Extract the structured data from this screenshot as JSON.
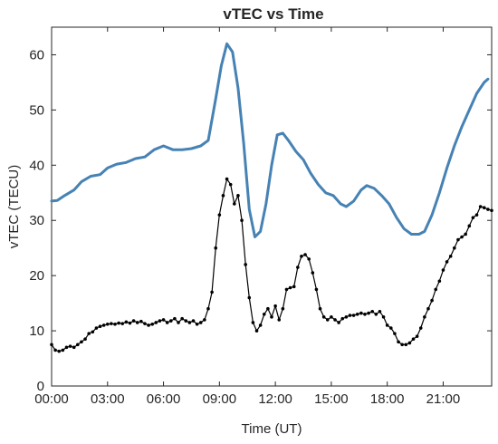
{
  "chart_data": {
    "type": "line",
    "title": "vTEC vs Time",
    "xlabel": "Time (UT)",
    "ylabel": "vTEC (TECU)",
    "xlim": [
      0,
      23.6
    ],
    "ylim": [
      0,
      65
    ],
    "grid": false,
    "legend": "none",
    "x_ticks": [
      {
        "value": 0,
        "label": "00:00"
      },
      {
        "value": 3,
        "label": "03:00"
      },
      {
        "value": 6,
        "label": "06:00"
      },
      {
        "value": 9,
        "label": "09:00"
      },
      {
        "value": 12,
        "label": "12:00"
      },
      {
        "value": 15,
        "label": "15:00"
      },
      {
        "value": 18,
        "label": "18:00"
      },
      {
        "value": 21,
        "label": "21:00"
      }
    ],
    "y_ticks": [
      {
        "value": 0,
        "label": "0"
      },
      {
        "value": 10,
        "label": "10"
      },
      {
        "value": 20,
        "label": "20"
      },
      {
        "value": 30,
        "label": "30"
      },
      {
        "value": 40,
        "label": "40"
      },
      {
        "value": 50,
        "label": "50"
      },
      {
        "value": 60,
        "label": "60"
      }
    ],
    "series": [
      {
        "color": "#4682b4",
        "style": "line",
        "points": [
          [
            0.0,
            33.5
          ],
          [
            0.3,
            33.6
          ],
          [
            0.7,
            34.5
          ],
          [
            1.2,
            35.5
          ],
          [
            1.6,
            37.0
          ],
          [
            2.1,
            38.0
          ],
          [
            2.6,
            38.3
          ],
          [
            3.0,
            39.5
          ],
          [
            3.5,
            40.2
          ],
          [
            4.0,
            40.5
          ],
          [
            4.5,
            41.2
          ],
          [
            5.0,
            41.5
          ],
          [
            5.5,
            42.8
          ],
          [
            6.0,
            43.5
          ],
          [
            6.5,
            42.8
          ],
          [
            7.0,
            42.8
          ],
          [
            7.5,
            43.0
          ],
          [
            8.0,
            43.5
          ],
          [
            8.4,
            44.5
          ],
          [
            8.8,
            52.0
          ],
          [
            9.1,
            58.0
          ],
          [
            9.4,
            62.0
          ],
          [
            9.7,
            60.5
          ],
          [
            10.0,
            54.0
          ],
          [
            10.3,
            44.0
          ],
          [
            10.6,
            32.0
          ],
          [
            10.9,
            27.0
          ],
          [
            11.2,
            28.0
          ],
          [
            11.5,
            33.0
          ],
          [
            11.8,
            40.0
          ],
          [
            12.1,
            45.5
          ],
          [
            12.4,
            45.8
          ],
          [
            12.7,
            44.5
          ],
          [
            13.1,
            42.5
          ],
          [
            13.5,
            41.0
          ],
          [
            13.9,
            38.5
          ],
          [
            14.3,
            36.5
          ],
          [
            14.7,
            35.0
          ],
          [
            15.1,
            34.5
          ],
          [
            15.5,
            33.0
          ],
          [
            15.8,
            32.5
          ],
          [
            16.2,
            33.5
          ],
          [
            16.6,
            35.5
          ],
          [
            16.9,
            36.3
          ],
          [
            17.3,
            35.8
          ],
          [
            17.7,
            34.5
          ],
          [
            18.1,
            33.0
          ],
          [
            18.5,
            30.5
          ],
          [
            18.9,
            28.5
          ],
          [
            19.3,
            27.5
          ],
          [
            19.7,
            27.5
          ],
          [
            20.0,
            28.0
          ],
          [
            20.4,
            31.0
          ],
          [
            20.8,
            35.0
          ],
          [
            21.2,
            39.5
          ],
          [
            21.6,
            43.5
          ],
          [
            22.0,
            47.0
          ],
          [
            22.4,
            50.0
          ],
          [
            22.8,
            53.0
          ],
          [
            23.2,
            55.0
          ],
          [
            23.4,
            55.6
          ]
        ]
      },
      {
        "color": "#000000",
        "style": "line-with-dots",
        "points": [
          [
            0.0,
            7.5
          ],
          [
            0.2,
            6.5
          ],
          [
            0.4,
            6.3
          ],
          [
            0.6,
            6.5
          ],
          [
            0.8,
            7.0
          ],
          [
            1.0,
            7.2
          ],
          [
            1.2,
            7.0
          ],
          [
            1.4,
            7.5
          ],
          [
            1.6,
            8.0
          ],
          [
            1.8,
            8.5
          ],
          [
            2.0,
            9.5
          ],
          [
            2.2,
            9.8
          ],
          [
            2.4,
            10.5
          ],
          [
            2.6,
            10.8
          ],
          [
            2.8,
            11.0
          ],
          [
            3.0,
            11.2
          ],
          [
            3.2,
            11.3
          ],
          [
            3.4,
            11.2
          ],
          [
            3.6,
            11.4
          ],
          [
            3.8,
            11.3
          ],
          [
            4.0,
            11.6
          ],
          [
            4.2,
            11.4
          ],
          [
            4.4,
            11.8
          ],
          [
            4.6,
            11.5
          ],
          [
            4.8,
            11.7
          ],
          [
            5.0,
            11.3
          ],
          [
            5.2,
            11.0
          ],
          [
            5.4,
            11.2
          ],
          [
            5.6,
            11.5
          ],
          [
            5.8,
            11.8
          ],
          [
            6.0,
            12.0
          ],
          [
            6.2,
            11.5
          ],
          [
            6.4,
            11.8
          ],
          [
            6.6,
            12.2
          ],
          [
            6.8,
            11.5
          ],
          [
            7.0,
            12.2
          ],
          [
            7.2,
            11.8
          ],
          [
            7.4,
            11.5
          ],
          [
            7.6,
            11.8
          ],
          [
            7.8,
            11.2
          ],
          [
            8.0,
            11.5
          ],
          [
            8.2,
            12.0
          ],
          [
            8.4,
            14.0
          ],
          [
            8.6,
            17.0
          ],
          [
            8.8,
            25.0
          ],
          [
            9.0,
            31.0
          ],
          [
            9.2,
            34.5
          ],
          [
            9.4,
            37.5
          ],
          [
            9.6,
            36.5
          ],
          [
            9.8,
            33.0
          ],
          [
            10.0,
            34.5
          ],
          [
            10.2,
            30.0
          ],
          [
            10.4,
            22.0
          ],
          [
            10.6,
            16.0
          ],
          [
            10.8,
            11.5
          ],
          [
            11.0,
            10.0
          ],
          [
            11.2,
            11.0
          ],
          [
            11.4,
            13.0
          ],
          [
            11.6,
            14.0
          ],
          [
            11.8,
            12.5
          ],
          [
            12.0,
            14.5
          ],
          [
            12.2,
            12.0
          ],
          [
            12.4,
            14.0
          ],
          [
            12.6,
            17.5
          ],
          [
            12.8,
            17.8
          ],
          [
            13.0,
            18.0
          ],
          [
            13.2,
            21.5
          ],
          [
            13.4,
            23.5
          ],
          [
            13.6,
            23.8
          ],
          [
            13.8,
            23.0
          ],
          [
            14.0,
            20.5
          ],
          [
            14.2,
            17.5
          ],
          [
            14.4,
            14.0
          ],
          [
            14.6,
            12.5
          ],
          [
            14.8,
            12.0
          ],
          [
            15.0,
            12.5
          ],
          [
            15.2,
            12.0
          ],
          [
            15.4,
            11.5
          ],
          [
            15.6,
            12.2
          ],
          [
            15.8,
            12.5
          ],
          [
            16.0,
            12.8
          ],
          [
            16.2,
            12.8
          ],
          [
            16.4,
            13.0
          ],
          [
            16.6,
            13.2
          ],
          [
            16.8,
            13.0
          ],
          [
            17.0,
            13.2
          ],
          [
            17.2,
            13.5
          ],
          [
            17.4,
            13.0
          ],
          [
            17.6,
            13.5
          ],
          [
            17.8,
            12.5
          ],
          [
            18.0,
            11.0
          ],
          [
            18.2,
            10.5
          ],
          [
            18.4,
            9.5
          ],
          [
            18.6,
            8.0
          ],
          [
            18.8,
            7.5
          ],
          [
            19.0,
            7.5
          ],
          [
            19.2,
            7.8
          ],
          [
            19.4,
            8.5
          ],
          [
            19.6,
            9.0
          ],
          [
            19.8,
            10.5
          ],
          [
            20.0,
            12.5
          ],
          [
            20.2,
            14.0
          ],
          [
            20.4,
            15.5
          ],
          [
            20.6,
            17.5
          ],
          [
            20.8,
            19.0
          ],
          [
            21.0,
            21.0
          ],
          [
            21.2,
            22.5
          ],
          [
            21.4,
            23.5
          ],
          [
            21.6,
            25.0
          ],
          [
            21.8,
            26.5
          ],
          [
            22.0,
            27.0
          ],
          [
            22.2,
            27.5
          ],
          [
            22.4,
            29.0
          ],
          [
            22.6,
            30.5
          ],
          [
            22.8,
            31.0
          ],
          [
            23.0,
            32.5
          ],
          [
            23.2,
            32.3
          ],
          [
            23.4,
            32.0
          ],
          [
            23.6,
            31.8
          ]
        ]
      }
    ]
  }
}
